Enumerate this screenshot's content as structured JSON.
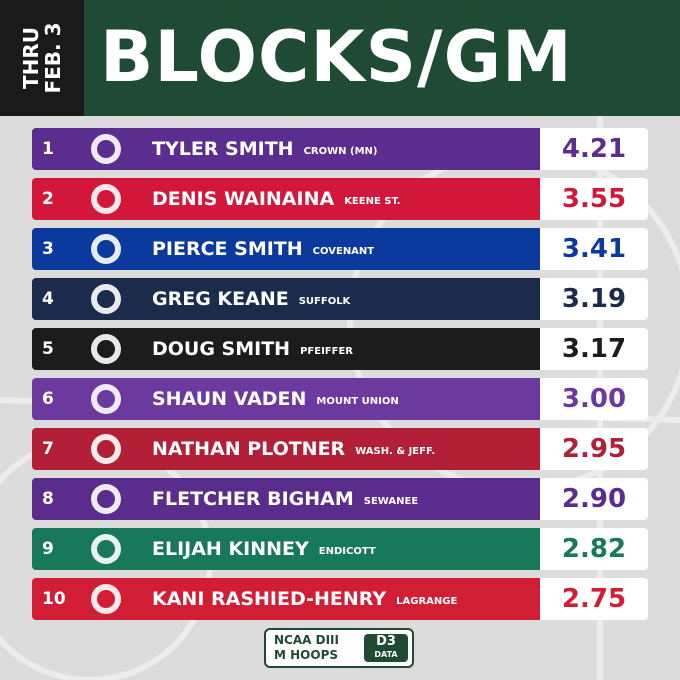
{
  "header": {
    "tag_lines": [
      "THRU",
      "FEB. 3"
    ],
    "title": "BLOCKS/GM"
  },
  "rows": [
    {
      "rank": "1",
      "player": "TYLER SMITH",
      "school": "CROWN (MN)",
      "value": "4.21",
      "color": "#5b2d8e"
    },
    {
      "rank": "2",
      "player": "DENIS WAINAINA",
      "school": "KEENE ST.",
      "value": "3.55",
      "color": "#d2173a"
    },
    {
      "rank": "3",
      "player": "PIERCE SMITH",
      "school": "COVENANT",
      "value": "3.41",
      "color": "#0c3a9c"
    },
    {
      "rank": "4",
      "player": "GREG KEANE",
      "school": "SUFFOLK",
      "value": "3.19",
      "color": "#1c2a4c"
    },
    {
      "rank": "5",
      "player": "DOUG SMITH",
      "school": "PFEIFFER",
      "value": "3.17",
      "color": "#1c1c1c"
    },
    {
      "rank": "6",
      "player": "SHAUN VADEN",
      "school": "MOUNT UNION",
      "value": "3.00",
      "color": "#6c3a9e"
    },
    {
      "rank": "7",
      "player": "NATHAN PLOTNER",
      "school": "WASH. & JEFF.",
      "value": "2.95",
      "color": "#b31f36"
    },
    {
      "rank": "8",
      "player": "FLETCHER BIGHAM",
      "school": "SEWANEE",
      "value": "2.90",
      "color": "#5a2d8c"
    },
    {
      "rank": "9",
      "player": "ELIJAH KINNEY",
      "school": "ENDICOTT",
      "value": "2.82",
      "color": "#17795a"
    },
    {
      "rank": "10",
      "player": "KANI RASHIED-HENRY",
      "school": "LAGRANGE",
      "value": "2.75",
      "color": "#d21e34"
    }
  ],
  "footer": {
    "lines": [
      "NCAA DIII",
      "M HOOPS"
    ],
    "badge": [
      "D3",
      "DATA"
    ]
  }
}
